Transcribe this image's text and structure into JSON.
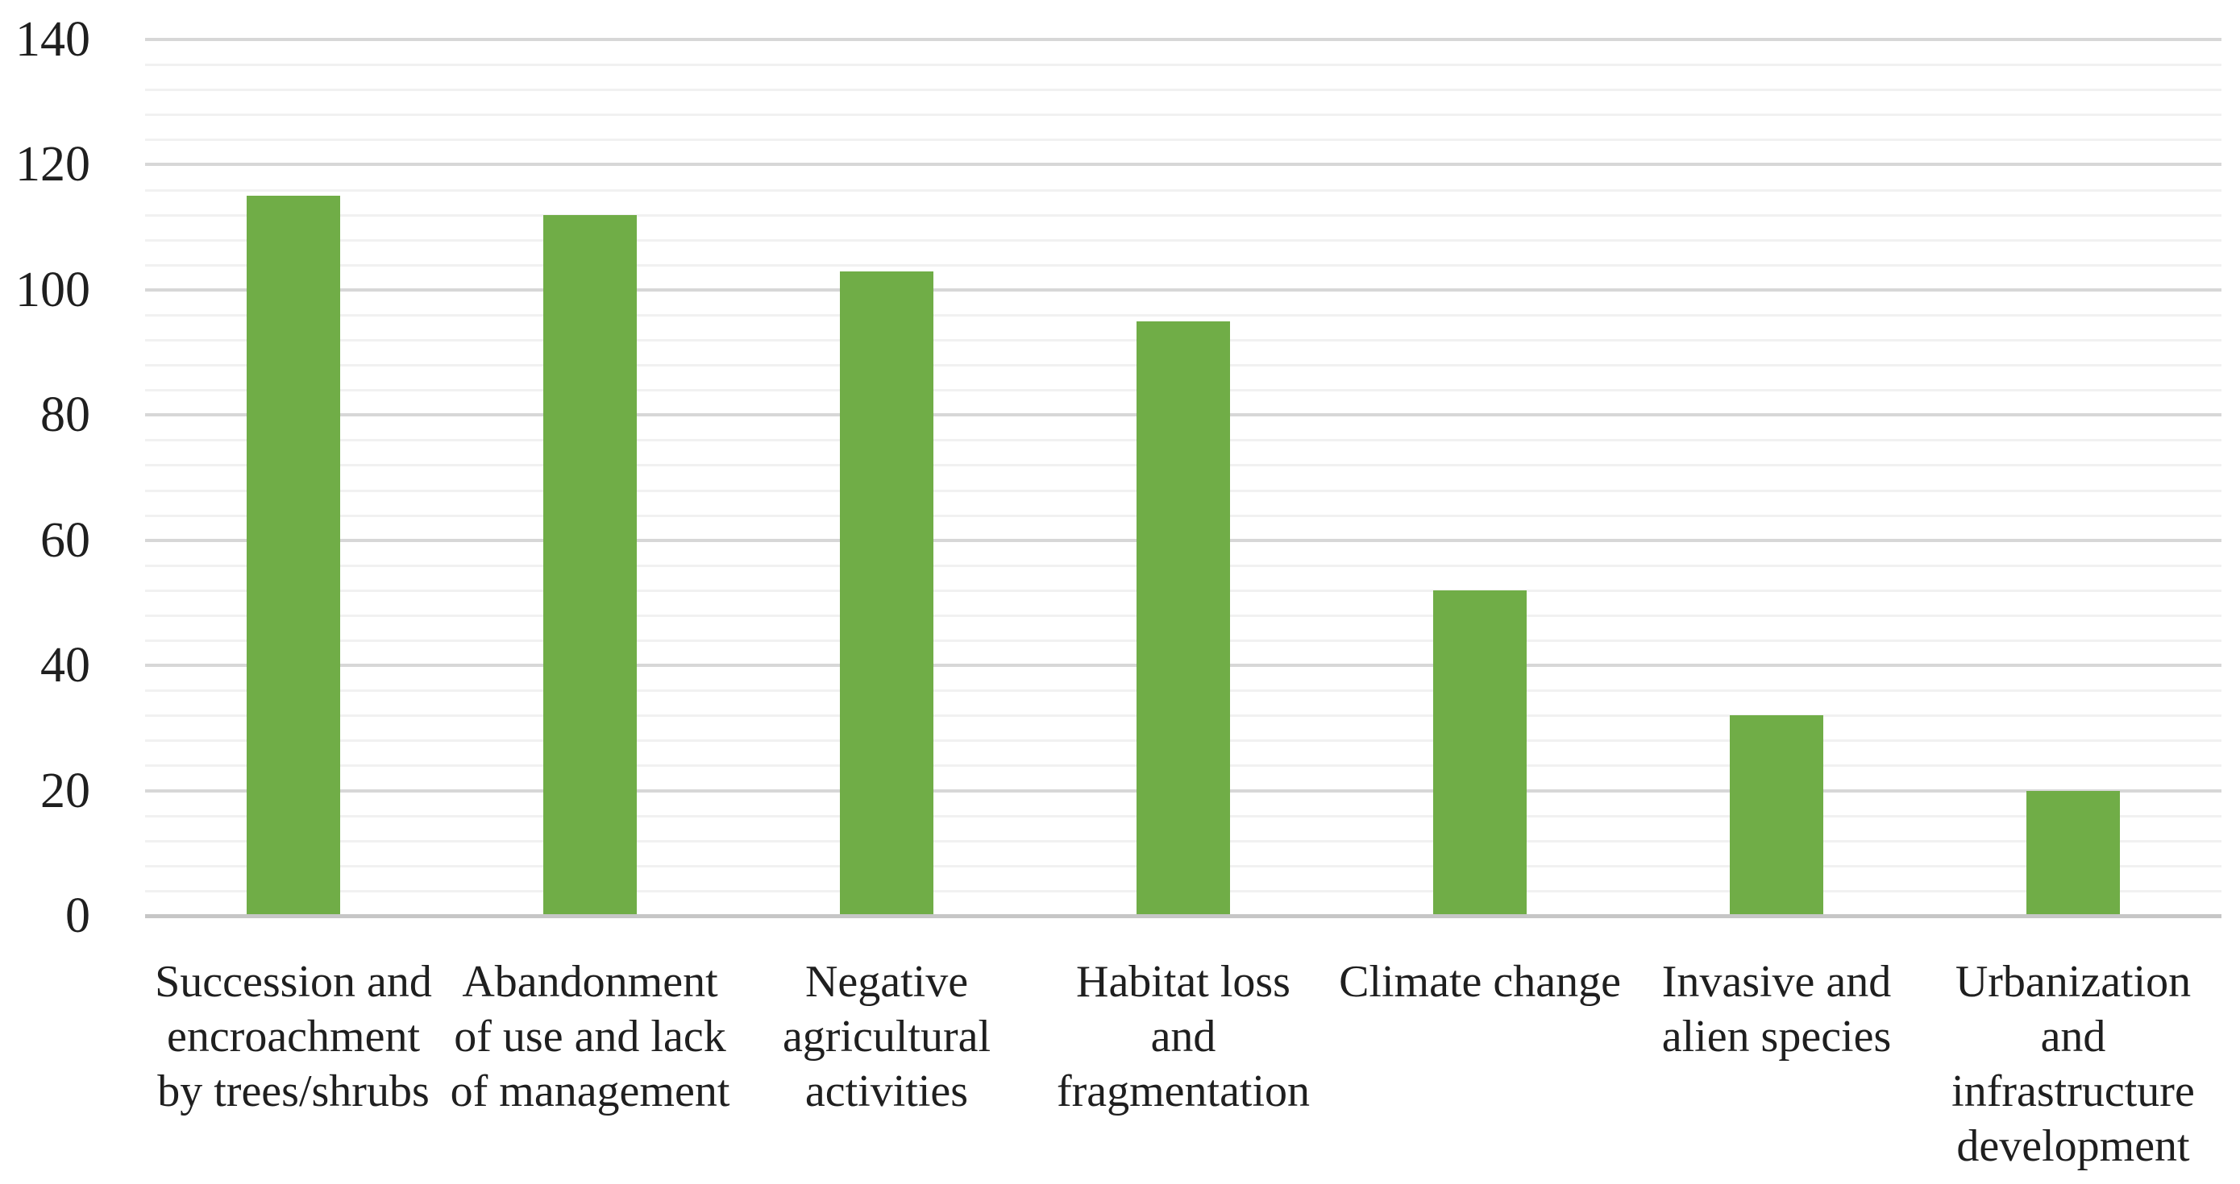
{
  "chart_data": {
    "type": "bar",
    "title": "",
    "xlabel": "",
    "ylabel": "",
    "categories": [
      "Succession and encroachment by trees/shrubs",
      "Abandonment of use and lack of management",
      "Negative agricultural activities",
      "Habitat loss and fragmentation",
      "Climate change",
      "Invasive and alien species",
      "Urbanization and infrastructure development"
    ],
    "category_label_lines": [
      [
        "Succession and",
        "encroachment",
        "by trees/shrubs"
      ],
      [
        "Abandonment",
        "of use and lack",
        "of management"
      ],
      [
        "Negative",
        "agricultural",
        "activities"
      ],
      [
        "Habitat loss",
        "and",
        "fragmentation"
      ],
      [
        "Climate change"
      ],
      [
        "Invasive and",
        "alien species"
      ],
      [
        "Urbanization",
        "and",
        "infrastructure",
        "development"
      ]
    ],
    "values": [
      115,
      112,
      103,
      95,
      52,
      32,
      20
    ],
    "ylim": [
      0,
      140
    ],
    "y_major_unit": 20,
    "y_minor_unit": 4,
    "y_major_ticks": [
      0,
      20,
      40,
      60,
      80,
      100,
      120,
      140
    ],
    "legend": "none",
    "grid": {
      "horizontal_major": true,
      "horizontal_minor": true,
      "vertical": false
    },
    "colors": {
      "bar": "#70ad47",
      "major_gridline": "#d7d7d7",
      "minor_gridline": "#f1f1f1",
      "axis_line": "#c6c6c6",
      "text": "#1f1f1f",
      "background": "#ffffff"
    }
  }
}
